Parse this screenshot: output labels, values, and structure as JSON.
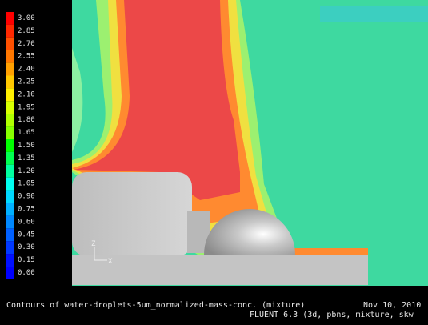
{
  "colorbar": {
    "labels": [
      "3.00",
      "2.85",
      "2.70",
      "2.55",
      "2.40",
      "2.25",
      "2.10",
      "1.95",
      "1.80",
      "1.65",
      "1.50",
      "1.35",
      "1.20",
      "1.05",
      "0.90",
      "0.75",
      "0.60",
      "0.45",
      "0.30",
      "0.15",
      "0.00"
    ],
    "colors": [
      "#ff0000",
      "#ff2800",
      "#ff5000",
      "#ff7800",
      "#ffa000",
      "#ffc800",
      "#fff000",
      "#d8ff00",
      "#b0ff00",
      "#88ff00",
      "#00ff00",
      "#00ff50",
      "#00ffa0",
      "#00fff0",
      "#00d8ff",
      "#00b0ff",
      "#0088ff",
      "#0060ff",
      "#0038ff",
      "#0010ff",
      "#0000ff"
    ]
  },
  "axes": {
    "z": "Z",
    "x": "X"
  },
  "footer": {
    "title": "Contours of water-droplets-5um_normalized-mass-conc. (mixture)",
    "date": "Nov 10, 2010",
    "solver": "FLUENT 6.3 (3d, pbns, mixture, skw"
  }
}
